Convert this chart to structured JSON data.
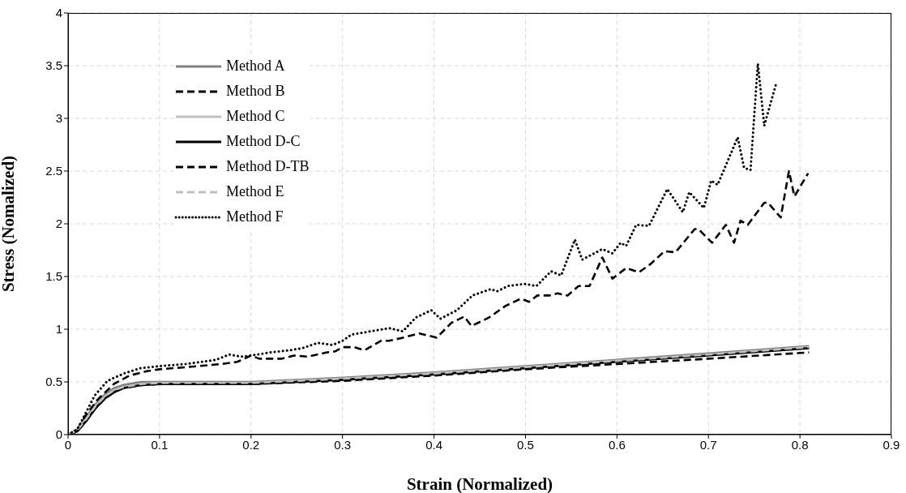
{
  "chart_data": {
    "type": "line",
    "xlabel": "Strain (Normalized)",
    "ylabel": "Stress (Nomalized)",
    "xlim": [
      0,
      0.9
    ],
    "xticks": [
      0,
      0.1,
      0.2,
      0.3,
      0.4,
      0.5,
      0.6,
      0.7,
      0.8,
      0.9
    ],
    "ylim": [
      0,
      4
    ],
    "yticks": [
      0,
      0.5,
      1,
      1.5,
      2,
      2.5,
      3,
      3.5,
      4
    ],
    "grid": true,
    "legend": "top left",
    "marker": "none",
    "series": [
      {
        "name": "Method A",
        "color": "#808080",
        "line_style": "solid",
        "x": [
          0,
          0.01,
          0.02,
          0.03,
          0.04,
          0.05,
          0.06,
          0.08,
          0.1,
          0.15,
          0.2,
          0.3,
          0.4,
          0.5,
          0.6,
          0.7,
          0.81
        ],
        "values": [
          0,
          0.05,
          0.17,
          0.29,
          0.38,
          0.44,
          0.47,
          0.5,
          0.5,
          0.5,
          0.5,
          0.54,
          0.59,
          0.65,
          0.71,
          0.77,
          0.84
        ]
      },
      {
        "name": "Method B",
        "color": "#000000",
        "line_style": "dashed",
        "x": [
          0,
          0.01,
          0.019,
          0.032,
          0.05,
          0.067,
          0.085,
          0.1,
          0.129,
          0.168,
          0.185,
          0.2,
          0.209,
          0.233,
          0.247,
          0.262,
          0.283,
          0.292,
          0.3,
          0.313,
          0.324,
          0.342,
          0.351,
          0.366,
          0.384,
          0.403,
          0.419,
          0.433,
          0.441,
          0.46,
          0.478,
          0.495,
          0.504,
          0.513,
          0.526,
          0.535,
          0.546,
          0.558,
          0.57,
          0.584,
          0.595,
          0.61,
          0.624,
          0.637,
          0.652,
          0.664,
          0.685,
          0.689,
          0.704,
          0.719,
          0.728,
          0.735,
          0.743,
          0.761,
          0.765,
          0.779,
          0.788,
          0.794,
          0.809
        ],
        "values": [
          0,
          0.04,
          0.18,
          0.33,
          0.48,
          0.56,
          0.6,
          0.62,
          0.64,
          0.67,
          0.69,
          0.75,
          0.72,
          0.72,
          0.75,
          0.74,
          0.78,
          0.79,
          0.83,
          0.83,
          0.8,
          0.89,
          0.89,
          0.92,
          0.96,
          0.92,
          1.06,
          1.12,
          1.03,
          1.11,
          1.22,
          1.29,
          1.26,
          1.32,
          1.32,
          1.34,
          1.32,
          1.41,
          1.41,
          1.68,
          1.48,
          1.58,
          1.54,
          1.62,
          1.74,
          1.73,
          1.95,
          1.95,
          1.82,
          1.99,
          1.82,
          2.03,
          1.99,
          2.2,
          2.2,
          2.06,
          2.5,
          2.26,
          2.48
        ]
      },
      {
        "name": "Method C",
        "color": "#bfbfbf",
        "line_style": "solid",
        "x": [
          0,
          0.01,
          0.02,
          0.03,
          0.04,
          0.05,
          0.06,
          0.08,
          0.1,
          0.15,
          0.2,
          0.3,
          0.4,
          0.5,
          0.6,
          0.7,
          0.81
        ],
        "values": [
          0,
          0.04,
          0.15,
          0.27,
          0.36,
          0.42,
          0.45,
          0.48,
          0.49,
          0.49,
          0.49,
          0.53,
          0.58,
          0.64,
          0.7,
          0.76,
          0.83
        ]
      },
      {
        "name": "Method D-C",
        "color": "#000000",
        "line_style": "solid",
        "x": [
          0,
          0.01,
          0.02,
          0.03,
          0.04,
          0.05,
          0.06,
          0.08,
          0.1,
          0.15,
          0.2,
          0.3,
          0.4,
          0.5,
          0.6,
          0.7,
          0.81
        ],
        "values": [
          0,
          0.03,
          0.13,
          0.25,
          0.34,
          0.4,
          0.44,
          0.47,
          0.48,
          0.48,
          0.48,
          0.52,
          0.57,
          0.63,
          0.69,
          0.75,
          0.82
        ]
      },
      {
        "name": "Method D-TB",
        "color": "#000000",
        "line_style": "dashed",
        "x": [
          0,
          0.01,
          0.02,
          0.03,
          0.04,
          0.05,
          0.06,
          0.08,
          0.1,
          0.15,
          0.2,
          0.3,
          0.4,
          0.5,
          0.6,
          0.7,
          0.81
        ],
        "values": [
          0,
          0.03,
          0.13,
          0.25,
          0.34,
          0.4,
          0.44,
          0.47,
          0.48,
          0.48,
          0.48,
          0.51,
          0.56,
          0.62,
          0.67,
          0.72,
          0.78
        ]
      },
      {
        "name": "Method E",
        "color": "#bfbfbf",
        "line_style": "dashed",
        "x": [
          0,
          0.01,
          0.02,
          0.03,
          0.04,
          0.05,
          0.06,
          0.08,
          0.1,
          0.15,
          0.2,
          0.3,
          0.4,
          0.5,
          0.6,
          0.7,
          0.81
        ],
        "values": [
          0,
          0.04,
          0.15,
          0.27,
          0.36,
          0.42,
          0.45,
          0.48,
          0.49,
          0.49,
          0.49,
          0.53,
          0.58,
          0.64,
          0.7,
          0.76,
          0.83
        ]
      },
      {
        "name": "Method F",
        "color": "#000000",
        "line_style": "dotted",
        "x": [
          0,
          0.01,
          0.019,
          0.029,
          0.043,
          0.061,
          0.079,
          0.1,
          0.129,
          0.162,
          0.176,
          0.189,
          0.2,
          0.221,
          0.242,
          0.256,
          0.273,
          0.289,
          0.3,
          0.31,
          0.324,
          0.351,
          0.366,
          0.38,
          0.397,
          0.407,
          0.425,
          0.442,
          0.462,
          0.469,
          0.481,
          0.499,
          0.512,
          0.528,
          0.539,
          0.554,
          0.562,
          0.584,
          0.595,
          0.604,
          0.61,
          0.621,
          0.635,
          0.655,
          0.672,
          0.679,
          0.695,
          0.703,
          0.71,
          0.732,
          0.739,
          0.746,
          0.754,
          0.761,
          0.774
        ],
        "values": [
          0,
          0.05,
          0.2,
          0.37,
          0.51,
          0.58,
          0.63,
          0.65,
          0.67,
          0.71,
          0.76,
          0.74,
          0.75,
          0.78,
          0.8,
          0.82,
          0.87,
          0.85,
          0.89,
          0.95,
          0.97,
          1.01,
          0.98,
          1.11,
          1.18,
          1.1,
          1.18,
          1.32,
          1.38,
          1.36,
          1.41,
          1.43,
          1.41,
          1.55,
          1.51,
          1.85,
          1.66,
          1.76,
          1.72,
          1.82,
          1.79,
          1.99,
          1.98,
          2.33,
          2.11,
          2.3,
          2.15,
          2.41,
          2.37,
          2.82,
          2.53,
          2.51,
          3.52,
          2.93,
          3.33
        ]
      }
    ]
  }
}
